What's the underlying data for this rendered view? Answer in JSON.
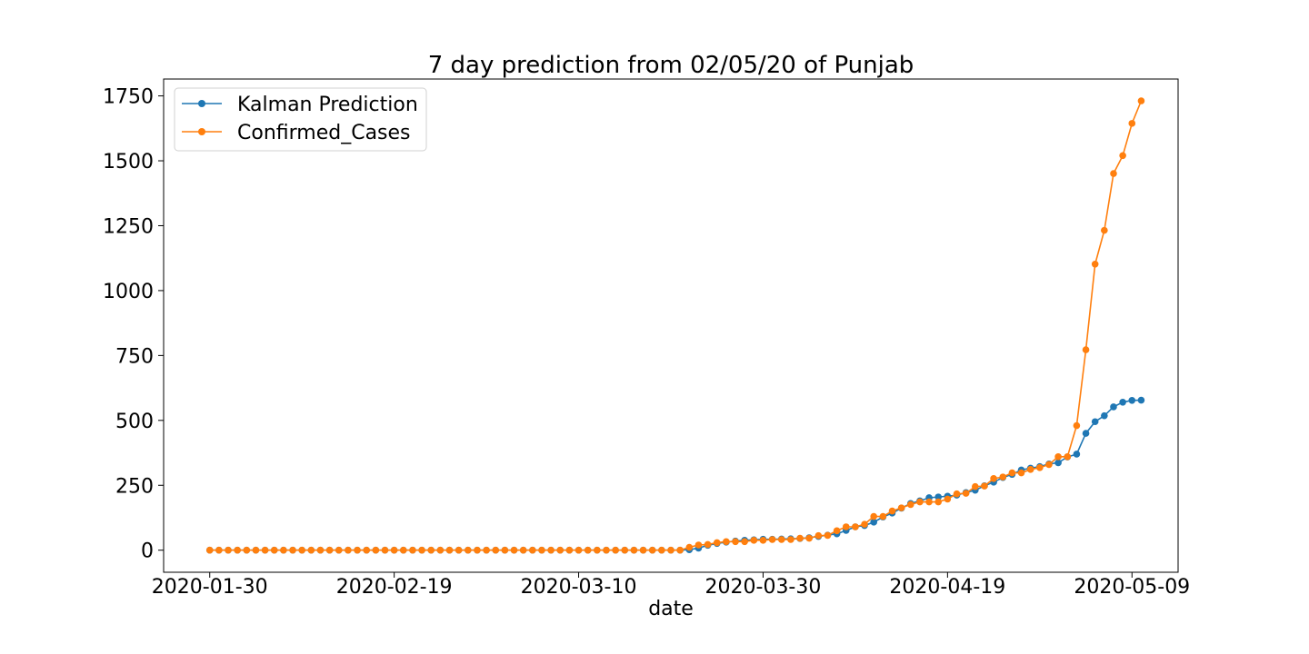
{
  "chart_data": {
    "type": "line",
    "title": "7 day prediction from 02/05/20 of Punjab",
    "xlabel": "date",
    "ylabel": "",
    "x_start": "2020-01-30",
    "x_end": "2020-05-09",
    "xlim": [
      "2020-01-25",
      "2020-05-14"
    ],
    "ylim": [
      -85,
      1815
    ],
    "x_ticks": [
      "2020-01-30",
      "2020-02-19",
      "2020-03-10",
      "2020-03-30",
      "2020-04-19",
      "2020-05-09"
    ],
    "y_ticks": [
      0,
      250,
      500,
      750,
      1000,
      1250,
      1500,
      1750
    ],
    "grid": false,
    "legend_position": "top-left",
    "series": [
      {
        "name": "Kalman Prediction",
        "color": "#1f77b4",
        "values": [
          0,
          0,
          0,
          0,
          0,
          0,
          0,
          0,
          0,
          0,
          0,
          0,
          0,
          0,
          0,
          0,
          0,
          0,
          0,
          0,
          0,
          0,
          0,
          0,
          0,
          0,
          0,
          0,
          0,
          0,
          0,
          0,
          0,
          0,
          0,
          0,
          0,
          0,
          0,
          0,
          0,
          0,
          0,
          0,
          0,
          0,
          0,
          0,
          0,
          0,
          0,
          0,
          2,
          8,
          19,
          26,
          31,
          35,
          38,
          40,
          42,
          42,
          43,
          44,
          45,
          48,
          53,
          58,
          63,
          76,
          90,
          95,
          108,
          128,
          143,
          162,
          180,
          190,
          202,
          205,
          208,
          212,
          222,
          231,
          248,
          262,
          280,
          292,
          309,
          316,
          322,
          332,
          337,
          359,
          370,
          450,
          495,
          518,
          552,
          570,
          577,
          578
        ]
      },
      {
        "name": "Confirmed_Cases",
        "color": "#ff7f0e",
        "values": [
          0,
          0,
          0,
          0,
          0,
          0,
          0,
          0,
          0,
          0,
          0,
          0,
          0,
          0,
          0,
          0,
          0,
          0,
          0,
          0,
          0,
          0,
          0,
          0,
          0,
          0,
          0,
          0,
          0,
          0,
          0,
          0,
          0,
          0,
          0,
          0,
          0,
          0,
          0,
          0,
          0,
          0,
          0,
          0,
          0,
          0,
          0,
          0,
          0,
          0,
          0,
          0,
          11,
          20,
          22,
          29,
          33,
          33,
          33,
          38,
          38,
          41,
          41,
          41,
          46,
          46,
          56,
          57,
          75,
          90,
          90,
          100,
          130,
          130,
          151,
          163,
          176,
          186,
          186,
          186,
          197,
          217,
          219,
          245,
          247,
          276,
          282,
          298,
          298,
          311,
          318,
          330,
          360,
          360,
          480,
          772,
          1102,
          1232,
          1451,
          1520,
          1644,
          1731
        ]
      }
    ]
  }
}
